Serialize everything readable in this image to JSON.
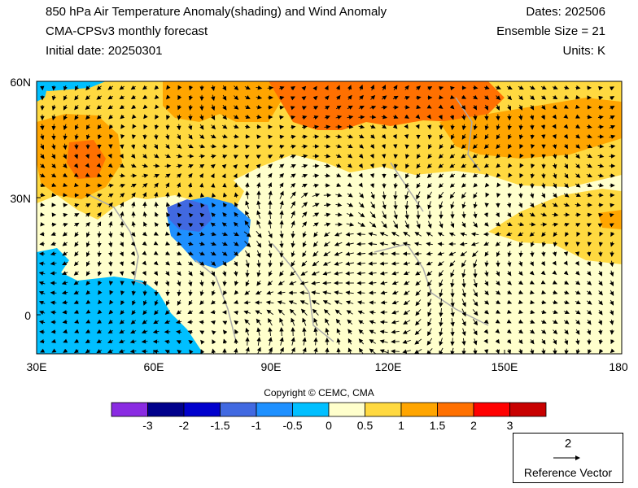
{
  "header": {
    "title_line1": "850 hPa Air Temperature Anomaly(shading) and Wind Anomaly",
    "title_line2": "CMA-CPSv3 monthly forecast",
    "title_line3": "Initial date: 20250301",
    "dates": "Dates: 202506",
    "ensemble": "Ensemble Size = 21",
    "units": "Units: K"
  },
  "map": {
    "lat_labels": [
      "60N",
      "30N",
      "0"
    ],
    "lon_labels": [
      "30E",
      "60E",
      "90E",
      "120E",
      "150E",
      "180"
    ]
  },
  "copyright": "Copyright © CEMC, CMA",
  "colorbar": {
    "colors": [
      "#8a2be2",
      "#00008b",
      "#0000cd",
      "#4169e1",
      "#1e90ff",
      "#00bfff",
      "#ffffcc",
      "#ffd940",
      "#ffa500",
      "#ff7000",
      "#ff0000",
      "#c80000"
    ],
    "labels": [
      "-3",
      "-2",
      "-1.5",
      "-1",
      "-0.5",
      "0",
      "0.5",
      "1",
      "1.5",
      "2",
      "3"
    ]
  },
  "reference": {
    "magnitude": "2",
    "label": "Reference Vector"
  }
}
